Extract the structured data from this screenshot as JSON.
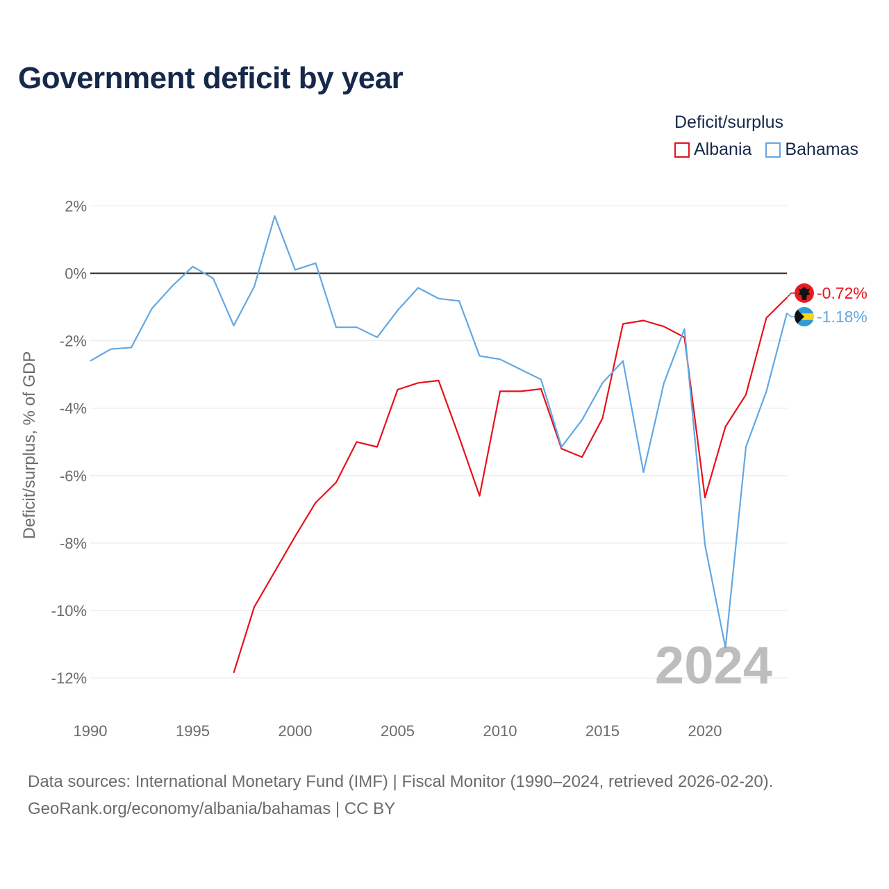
{
  "title": "Government deficit by year",
  "legend": {
    "title": "Deficit/surplus",
    "items": [
      {
        "label": "Albania",
        "color": "#e8111a"
      },
      {
        "label": "Bahamas",
        "color": "#63a7e3"
      }
    ]
  },
  "sources": {
    "line1": "Data sources: International Monetary Fund (IMF) | Fiscal Monitor (1990–2024, retrieved 2026-02-20).",
    "line2": "GeoRank.org/economy/albania/bahamas | CC BY"
  },
  "chart_data": {
    "type": "line",
    "title": "Government deficit by year",
    "xlabel": "",
    "ylabel": "Deficit/surplus, % of GDP",
    "xlim": [
      1990,
      2024
    ],
    "ylim": [
      -13,
      2.5
    ],
    "xticks": [
      1990,
      1995,
      2000,
      2005,
      2010,
      2015,
      2020
    ],
    "yticks": [
      2,
      0,
      -2,
      -4,
      -6,
      -8,
      -10,
      -12
    ],
    "ytick_labels": [
      "2%",
      "0%",
      "-2%",
      "-4%",
      "-6%",
      "-8%",
      "-10%",
      "-12%"
    ],
    "watermark_year": "2024",
    "series": [
      {
        "name": "Albania",
        "color": "#e8111a",
        "end_label": "-0.72%",
        "icon": "albania-flag-icon",
        "x": [
          1997,
          1998,
          1999,
          2000,
          2001,
          2002,
          2003,
          2004,
          2005,
          2006,
          2007,
          2008,
          2009,
          2010,
          2011,
          2012,
          2013,
          2014,
          2015,
          2016,
          2017,
          2018,
          2019,
          2020,
          2021,
          2022,
          2023,
          2024
        ],
        "values": [
          -11.85,
          -9.9,
          -8.85,
          -7.8,
          -6.8,
          -6.2,
          -5.0,
          -5.15,
          -3.45,
          -3.25,
          -3.18,
          -4.85,
          -6.6,
          -3.5,
          -3.5,
          -3.43,
          -5.2,
          -5.45,
          -4.3,
          -1.5,
          -1.4,
          -1.58,
          -1.9,
          -6.65,
          -4.55,
          -3.6,
          -1.32,
          -0.72
        ]
      },
      {
        "name": "Bahamas",
        "color": "#63a7e3",
        "end_label": "-1.18%",
        "icon": "bahamas-flag-icon",
        "x": [
          1990,
          1991,
          1992,
          1993,
          1994,
          1995,
          1996,
          1997,
          1998,
          1999,
          2000,
          2001,
          2002,
          2003,
          2004,
          2005,
          2006,
          2007,
          2008,
          2009,
          2010,
          2011,
          2012,
          2013,
          2014,
          2015,
          2016,
          2017,
          2018,
          2019,
          2020,
          2021,
          2022,
          2023,
          2024
        ],
        "values": [
          -2.6,
          -2.25,
          -2.2,
          -1.05,
          -0.38,
          0.2,
          -0.15,
          -1.55,
          -0.4,
          1.7,
          0.1,
          0.3,
          -1.6,
          -1.6,
          -1.9,
          -1.1,
          -0.43,
          -0.75,
          -0.82,
          -2.45,
          -2.55,
          -2.85,
          -3.15,
          -5.15,
          -4.35,
          -3.25,
          -2.6,
          -5.9,
          -3.25,
          -1.65,
          -8.05,
          -11.1,
          -5.15,
          -3.5,
          -1.18
        ]
      }
    ]
  }
}
